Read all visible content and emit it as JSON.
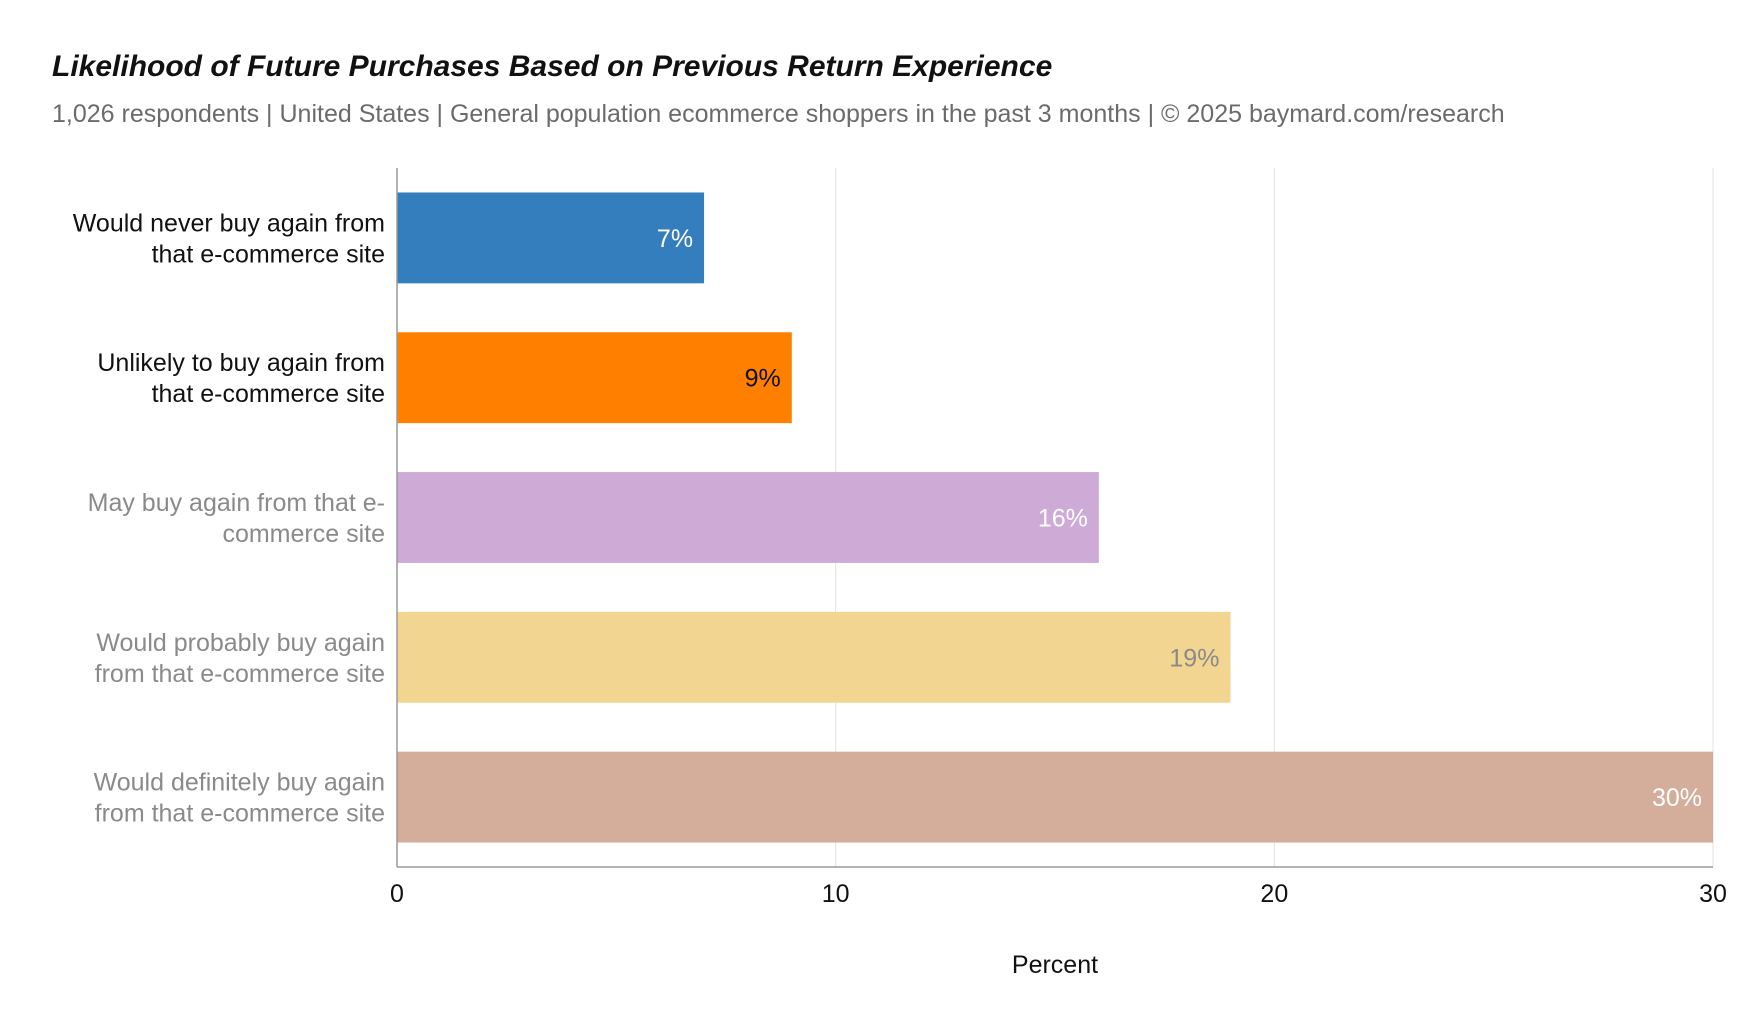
{
  "header": {
    "title": "Likelihood of Future Purchases Based on Previous Return Experience",
    "subtitle": "1,026 respondents  |  United States  |  General population ecommerce shoppers in the past 3 months | © 2025 baymard.com/research"
  },
  "chart_data": {
    "type": "bar",
    "orientation": "horizontal",
    "categories": [
      [
        "Would never buy again from",
        "that e-commerce site"
      ],
      [
        "Unlikely to buy again from",
        "that e-commerce site"
      ],
      [
        "May buy again from that e-",
        "commerce site"
      ],
      [
        "Would probably buy again",
        "from that e-commerce site"
      ],
      [
        "Would definitely buy again",
        "from that e-commerce site"
      ]
    ],
    "values": [
      7,
      9,
      16,
      19,
      30
    ],
    "value_labels": [
      "7%",
      "9%",
      "16%",
      "19%",
      "30%"
    ],
    "bar_colors": [
      "#357ebd",
      "#ff7f00",
      "#ceaad6",
      "#f2d591",
      "#d4ae9a"
    ],
    "label_colors": [
      "#ffffff",
      "#111111",
      "#ffffff",
      "#8a8a8a",
      "#ffffff"
    ],
    "category_label_colors": [
      "#111111",
      "#111111",
      "#8a8a8a",
      "#8a8a8a",
      "#8a8a8a"
    ],
    "xlabel": "Percent",
    "ylabel": "",
    "xlim": [
      0,
      30
    ],
    "xticks": [
      0,
      10,
      20,
      30
    ],
    "grid": true,
    "legend": "none"
  }
}
